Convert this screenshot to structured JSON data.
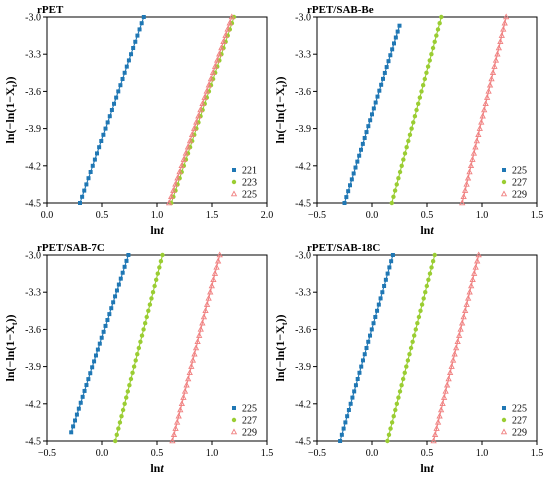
{
  "chart_data": [
    {
      "type": "scatter",
      "title": "rPET",
      "xlabel": "lnt",
      "ylabel": "ln(−ln(1−Xt))",
      "xlim": [
        0.0,
        2.0
      ],
      "ylim": [
        -4.5,
        -3.0
      ],
      "xticks": [
        "0.0",
        "0.5",
        "1.0",
        "1.5",
        "2.0"
      ],
      "yticks": [
        "-3.0",
        "-3.3",
        "-3.6",
        "-3.9",
        "-4.2",
        "-4.5"
      ],
      "legend": "bottom-right",
      "series": [
        {
          "name": "221",
          "color": "#1f77b4",
          "marker": "square",
          "x": [
            0.3,
            0.88
          ],
          "y": [
            -4.5,
            -3.0
          ]
        },
        {
          "name": "223",
          "color": "#9acd32",
          "marker": "circle",
          "x": [
            1.13,
            1.7
          ],
          "y": [
            -4.5,
            -3.0
          ]
        },
        {
          "name": "225",
          "color": "#f08080",
          "marker": "triangle",
          "x": [
            1.11,
            1.68
          ],
          "y": [
            -4.5,
            -3.0
          ]
        }
      ]
    },
    {
      "type": "scatter",
      "title": "rPET/SAB-Be",
      "xlabel": "lnt",
      "ylabel": "ln(−ln(1−Xt))",
      "xlim": [
        -0.5,
        1.5
      ],
      "ylim": [
        -4.5,
        -3.0
      ],
      "xticks": [
        "−0.5",
        "0.0",
        "0.5",
        "1.0",
        "1.5"
      ],
      "yticks": [
        "-3.0",
        "-3.3",
        "-3.6",
        "-3.9",
        "-4.2",
        "-4.5"
      ],
      "legend": "bottom-right",
      "series": [
        {
          "name": "225",
          "color": "#1f77b4",
          "marker": "square",
          "x": [
            -0.25,
            0.25
          ],
          "y": [
            -4.5,
            -3.07
          ]
        },
        {
          "name": "227",
          "color": "#9acd32",
          "marker": "circle",
          "x": [
            0.18,
            0.63
          ],
          "y": [
            -4.5,
            -3.0
          ]
        },
        {
          "name": "229",
          "color": "#f08080",
          "marker": "triangle",
          "x": [
            0.82,
            1.22
          ],
          "y": [
            -4.5,
            -3.0
          ]
        }
      ]
    },
    {
      "type": "scatter",
      "title": "rPET/SAB-7C",
      "xlabel": "lnt",
      "ylabel": "ln(−ln(1−Xt))",
      "xlim": [
        -0.5,
        1.5
      ],
      "ylim": [
        -4.5,
        -3.0
      ],
      "xticks": [
        "−0.5",
        "0.0",
        "0.5",
        "1.0",
        "1.5"
      ],
      "yticks": [
        "-3.0",
        "-3.3",
        "-3.6",
        "-3.9",
        "-4.2",
        "-4.5"
      ],
      "legend": "bottom-right",
      "series": [
        {
          "name": "225",
          "color": "#1f77b4",
          "marker": "square",
          "x": [
            -0.28,
            0.24
          ],
          "y": [
            -4.43,
            -3.0
          ]
        },
        {
          "name": "227",
          "color": "#9acd32",
          "marker": "circle",
          "x": [
            0.12,
            0.55
          ],
          "y": [
            -4.5,
            -3.0
          ]
        },
        {
          "name": "229",
          "color": "#f08080",
          "marker": "triangle",
          "x": [
            0.64,
            1.07
          ],
          "y": [
            -4.5,
            -3.0
          ]
        }
      ]
    },
    {
      "type": "scatter",
      "title": "rPET/SAB-18C",
      "xlabel": "lnt",
      "ylabel": "ln(−ln(1−Xt))",
      "xlim": [
        -0.5,
        1.5
      ],
      "ylim": [
        -4.5,
        -3.0
      ],
      "xticks": [
        "−0.5",
        "0.0",
        "0.5",
        "1.0",
        "1.5"
      ],
      "yticks": [
        "-3.0",
        "-3.3",
        "-3.6",
        "-3.9",
        "-4.2",
        "-4.5"
      ],
      "legend": "bottom-right",
      "series": [
        {
          "name": "225",
          "color": "#1f77b4",
          "marker": "square",
          "x": [
            -0.29,
            0.19
          ],
          "y": [
            -4.5,
            -3.0
          ]
        },
        {
          "name": "227",
          "color": "#9acd32",
          "marker": "circle",
          "x": [
            0.14,
            0.57
          ],
          "y": [
            -4.5,
            -3.0
          ]
        },
        {
          "name": "229",
          "color": "#f08080",
          "marker": "triangle",
          "x": [
            0.56,
            0.97
          ],
          "y": [
            -4.5,
            -3.0
          ]
        }
      ]
    }
  ]
}
